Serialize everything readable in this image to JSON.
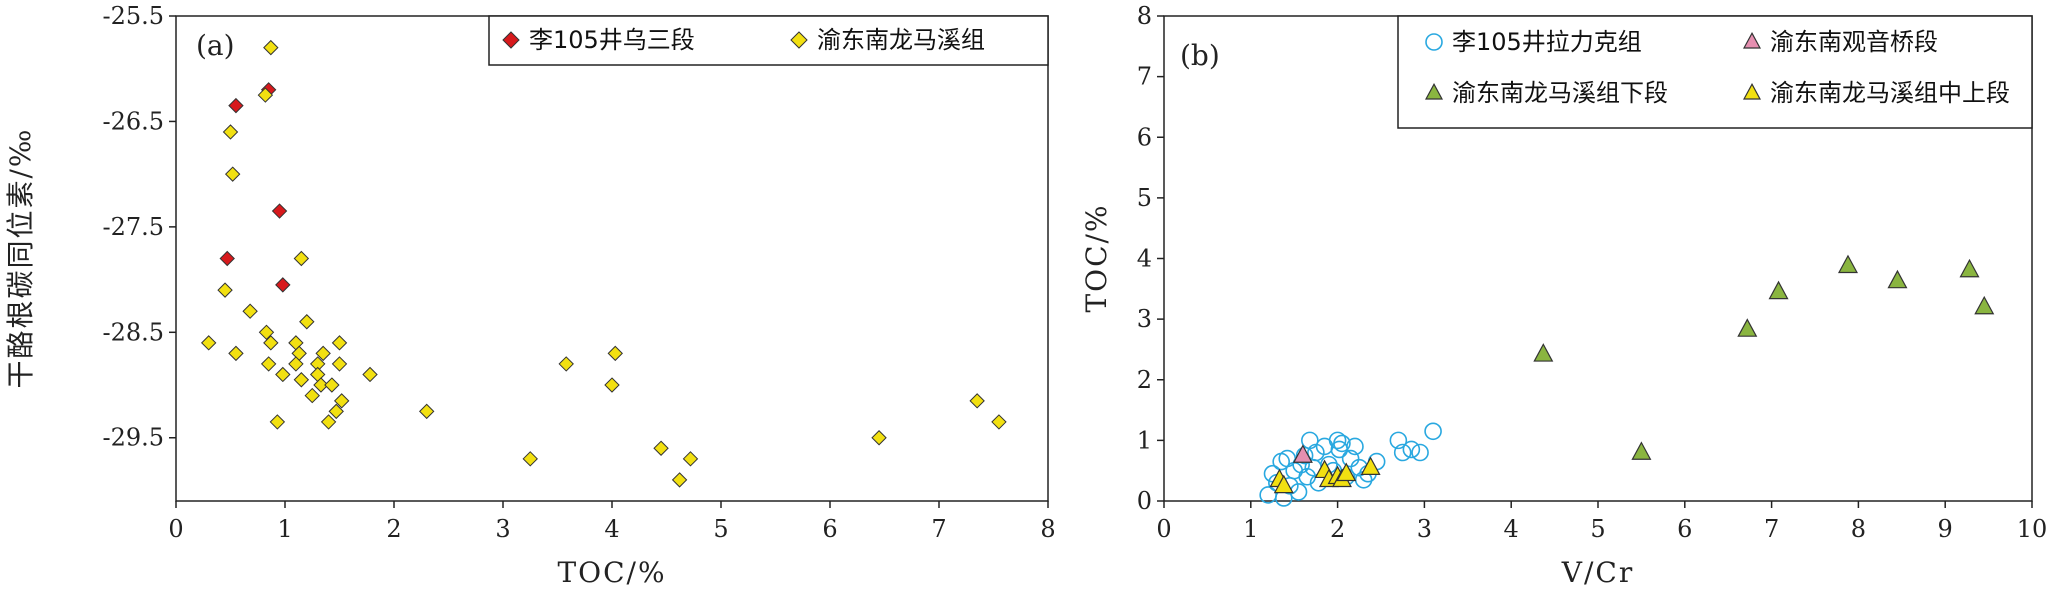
{
  "chart_data": [
    {
      "type": "scatter",
      "panel_label": "(a)",
      "xlabel": "TOC/%",
      "ylabel": "干酪根碳同位素/‰",
      "xlim": [
        0,
        8
      ],
      "ylim": [
        -30.1,
        -25.5
      ],
      "xticks": [
        "0",
        "1",
        "2",
        "3",
        "4",
        "5",
        "6",
        "7",
        "8"
      ],
      "yticks": [
        "-25.5",
        "-26.5",
        "-27.5",
        "-28.5",
        "-29.5"
      ],
      "legend_position": "top-right",
      "series": [
        {
          "name": "李105井乌三段",
          "marker": "diamond",
          "color": "#d7191c",
          "points": [
            [
              0.55,
              -26.35
            ],
            [
              0.85,
              -26.2
            ],
            [
              0.95,
              -27.35
            ],
            [
              0.47,
              -27.8
            ],
            [
              0.98,
              -28.05
            ]
          ]
        },
        {
          "name": "渝东南龙马溪组",
          "marker": "diamond",
          "color": "#f2e011",
          "points": [
            [
              0.87,
              -25.8
            ],
            [
              0.82,
              -26.25
            ],
            [
              0.5,
              -26.6
            ],
            [
              0.52,
              -27.0
            ],
            [
              1.15,
              -27.8
            ],
            [
              0.45,
              -28.1
            ],
            [
              0.68,
              -28.3
            ],
            [
              1.2,
              -28.4
            ],
            [
              0.83,
              -28.5
            ],
            [
              0.3,
              -28.6
            ],
            [
              0.87,
              -28.6
            ],
            [
              1.1,
              -28.6
            ],
            [
              1.5,
              -28.6
            ],
            [
              0.55,
              -28.7
            ],
            [
              1.13,
              -28.7
            ],
            [
              1.35,
              -28.7
            ],
            [
              0.85,
              -28.8
            ],
            [
              1.1,
              -28.8
            ],
            [
              1.3,
              -28.8
            ],
            [
              1.5,
              -28.8
            ],
            [
              0.98,
              -28.9
            ],
            [
              1.3,
              -28.9
            ],
            [
              1.78,
              -28.9
            ],
            [
              1.15,
              -28.95
            ],
            [
              1.33,
              -29.0
            ],
            [
              1.43,
              -29.0
            ],
            [
              1.25,
              -29.1
            ],
            [
              1.52,
              -29.15
            ],
            [
              1.47,
              -29.25
            ],
            [
              2.3,
              -29.25
            ],
            [
              0.93,
              -29.35
            ],
            [
              1.4,
              -29.35
            ],
            [
              3.58,
              -28.8
            ],
            [
              4.03,
              -28.7
            ],
            [
              4.0,
              -29.0
            ],
            [
              3.25,
              -29.7
            ],
            [
              4.45,
              -29.6
            ],
            [
              4.72,
              -29.7
            ],
            [
              4.62,
              -29.9
            ],
            [
              6.45,
              -29.5
            ],
            [
              7.35,
              -29.15
            ],
            [
              7.55,
              -29.35
            ]
          ]
        }
      ]
    },
    {
      "type": "scatter",
      "panel_label": "(b)",
      "xlabel": "V/Cr",
      "ylabel": "TOC/%",
      "xlim": [
        0,
        10
      ],
      "ylim": [
        0,
        8
      ],
      "xticks": [
        "0",
        "1",
        "2",
        "3",
        "4",
        "5",
        "6",
        "7",
        "8",
        "9",
        "10"
      ],
      "yticks": [
        "0",
        "1",
        "2",
        "3",
        "4",
        "5",
        "6",
        "7",
        "8"
      ],
      "legend_position": "top-right",
      "series": [
        {
          "name": "李105井拉力克组",
          "marker": "circle-open",
          "color": "#29a8e0",
          "points": [
            [
              1.2,
              0.1
            ],
            [
              1.25,
              0.45
            ],
            [
              1.3,
              0.3
            ],
            [
              1.35,
              0.65
            ],
            [
              1.38,
              0.05
            ],
            [
              1.42,
              0.7
            ],
            [
              1.45,
              0.25
            ],
            [
              1.5,
              0.5
            ],
            [
              1.55,
              0.15
            ],
            [
              1.58,
              0.6
            ],
            [
              1.62,
              0.75
            ],
            [
              1.65,
              0.4
            ],
            [
              1.68,
              1.0
            ],
            [
              1.72,
              0.55
            ],
            [
              1.75,
              0.8
            ],
            [
              1.78,
              0.3
            ],
            [
              1.85,
              0.9
            ],
            [
              1.9,
              0.6
            ],
            [
              1.95,
              0.5
            ],
            [
              2.0,
              1.0
            ],
            [
              2.02,
              0.85
            ],
            [
              2.05,
              0.95
            ],
            [
              2.1,
              0.4
            ],
            [
              2.15,
              0.7
            ],
            [
              2.2,
              0.9
            ],
            [
              2.25,
              0.55
            ],
            [
              2.3,
              0.35
            ],
            [
              2.35,
              0.45
            ],
            [
              2.45,
              0.65
            ],
            [
              2.7,
              1.0
            ],
            [
              2.75,
              0.8
            ],
            [
              2.85,
              0.85
            ],
            [
              2.95,
              0.8
            ],
            [
              3.1,
              1.15
            ]
          ]
        },
        {
          "name": "渝东南观音桥段",
          "marker": "triangle",
          "color": "#e58fb0",
          "points": [
            [
              1.6,
              0.75
            ]
          ]
        },
        {
          "name": "渝东南龙马溪组下段",
          "marker": "triangle",
          "color": "#8ab540",
          "points": [
            [
              4.37,
              2.42
            ],
            [
              5.5,
              0.8
            ],
            [
              6.72,
              2.83
            ],
            [
              7.08,
              3.45
            ],
            [
              7.88,
              3.88
            ],
            [
              8.45,
              3.63
            ],
            [
              9.28,
              3.81
            ],
            [
              9.45,
              3.2
            ]
          ]
        },
        {
          "name": "渝东南龙马溪组中上段",
          "marker": "triangle",
          "color": "#f2e011",
          "points": [
            [
              1.33,
              0.35
            ],
            [
              1.38,
              0.25
            ],
            [
              1.85,
              0.5
            ],
            [
              1.9,
              0.35
            ],
            [
              2.0,
              0.4
            ],
            [
              2.05,
              0.35
            ],
            [
              2.1,
              0.45
            ],
            [
              2.38,
              0.55
            ]
          ]
        }
      ]
    }
  ]
}
